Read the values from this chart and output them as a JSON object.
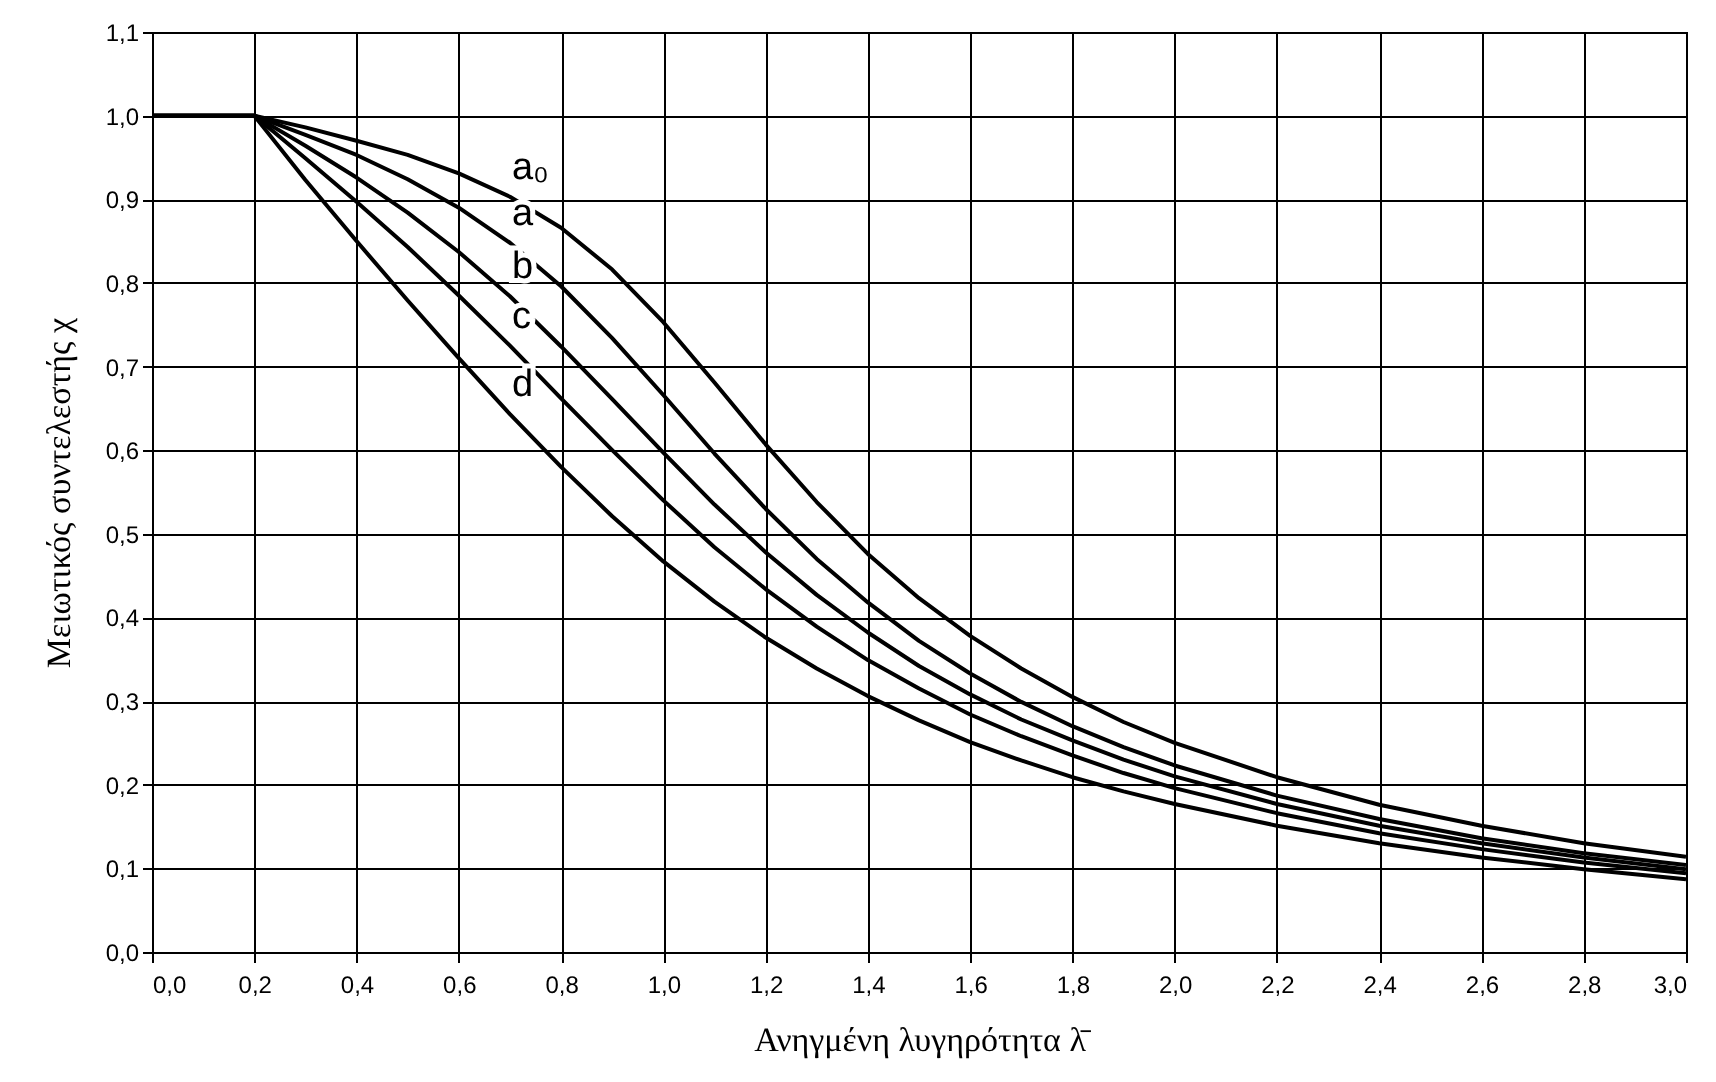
{
  "chart_data": {
    "type": "line",
    "xlabel": "Ανηγμένη λυγηρότητα λ̄",
    "ylabel": "Μειωτικός συντελεστής χ",
    "x": [
      0,
      0.2,
      0.3,
      0.4,
      0.5,
      0.6,
      0.7,
      0.8,
      0.9,
      1.0,
      1.1,
      1.2,
      1.3,
      1.4,
      1.5,
      1.6,
      1.7,
      1.8,
      1.9,
      2.0,
      2.2,
      2.4,
      2.6,
      2.8,
      3.0
    ],
    "series": [
      {
        "name": "a₀",
        "color": "#000000",
        "values": [
          1,
          1,
          0.986,
          0.97,
          0.953,
          0.931,
          0.903,
          0.866,
          0.816,
          0.753,
          0.681,
          0.607,
          0.538,
          0.476,
          0.423,
          0.378,
          0.339,
          0.305,
          0.275,
          0.25,
          0.209,
          0.176,
          0.151,
          0.13,
          0.114
        ]
      },
      {
        "name": "a",
        "color": "#000000",
        "values": [
          1,
          1,
          0.977,
          0.953,
          0.924,
          0.89,
          0.848,
          0.796,
          0.734,
          0.666,
          0.596,
          0.53,
          0.47,
          0.418,
          0.372,
          0.333,
          0.299,
          0.27,
          0.245,
          0.223,
          0.187,
          0.159,
          0.136,
          0.118,
          0.104
        ]
      },
      {
        "name": "b",
        "color": "#000000",
        "values": [
          1,
          1,
          0.964,
          0.926,
          0.884,
          0.837,
          0.784,
          0.724,
          0.661,
          0.597,
          0.535,
          0.478,
          0.427,
          0.382,
          0.342,
          0.308,
          0.278,
          0.253,
          0.23,
          0.21,
          0.177,
          0.151,
          0.13,
          0.113,
          0.099
        ]
      },
      {
        "name": "c",
        "color": "#000000",
        "values": [
          1,
          1,
          0.949,
          0.897,
          0.843,
          0.785,
          0.725,
          0.662,
          0.6,
          0.54,
          0.484,
          0.434,
          0.389,
          0.349,
          0.315,
          0.284,
          0.258,
          0.235,
          0.214,
          0.196,
          0.166,
          0.142,
          0.123,
          0.107,
          0.094
        ]
      },
      {
        "name": "d",
        "color": "#000000",
        "values": [
          1,
          1,
          0.923,
          0.85,
          0.779,
          0.71,
          0.643,
          0.58,
          0.521,
          0.467,
          0.419,
          0.376,
          0.339,
          0.306,
          0.277,
          0.251,
          0.229,
          0.209,
          0.192,
          0.177,
          0.151,
          0.13,
          0.113,
          0.099,
          0.087
        ]
      }
    ],
    "xlim": [
      0,
      3
    ],
    "ylim": [
      0,
      1.1
    ],
    "xticks": [
      {
        "value": 0,
        "label": "0,0"
      },
      {
        "value": 0.2,
        "label": "0,2"
      },
      {
        "value": 0.4,
        "label": "0,4"
      },
      {
        "value": 0.6,
        "label": "0,6"
      },
      {
        "value": 0.8,
        "label": "0,8"
      },
      {
        "value": 1,
        "label": "1,0"
      },
      {
        "value": 1.2,
        "label": "1,2"
      },
      {
        "value": 1.4,
        "label": "1,4"
      },
      {
        "value": 1.6,
        "label": "1,6"
      },
      {
        "value": 1.8,
        "label": "1,8"
      },
      {
        "value": 2,
        "label": "2,0"
      },
      {
        "value": 2.2,
        "label": "2,2"
      },
      {
        "value": 2.4,
        "label": "2,4"
      },
      {
        "value": 2.6,
        "label": "2,6"
      },
      {
        "value": 2.8,
        "label": "2,8"
      },
      {
        "value": 3,
        "label": "3,0"
      }
    ],
    "yticks": [
      {
        "value": 0,
        "label": "0,0"
      },
      {
        "value": 0.1,
        "label": "0,1"
      },
      {
        "value": 0.2,
        "label": "0,2"
      },
      {
        "value": 0.3,
        "label": "0,3"
      },
      {
        "value": 0.4,
        "label": "0,4"
      },
      {
        "value": 0.5,
        "label": "0,5"
      },
      {
        "value": 0.6,
        "label": "0,6"
      },
      {
        "value": 0.7,
        "label": "0,7"
      },
      {
        "value": 0.8,
        "label": "0,8"
      },
      {
        "value": 0.9,
        "label": "0,9"
      },
      {
        "value": 1,
        "label": "1,0"
      },
      {
        "value": 1.1,
        "label": "1,1"
      }
    ],
    "grid": true,
    "legend": false,
    "marker": "none",
    "line_style": "solid"
  }
}
